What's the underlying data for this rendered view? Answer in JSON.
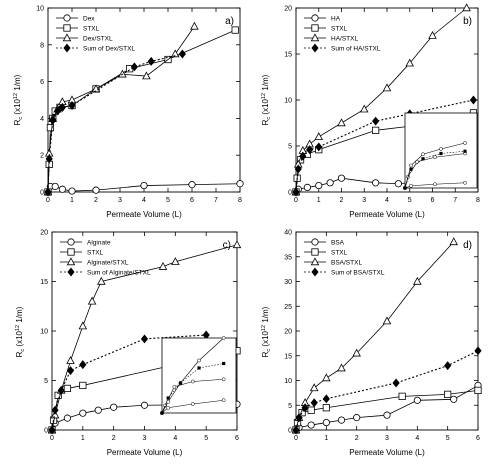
{
  "chart_data": [
    {
      "type": "line",
      "panel_label": "a)",
      "xlabel": "Permeate Volume (L)",
      "ylabel": "R  (x10   1/m)",
      "ylabel_sub": "c",
      "ylabel_exp": "12",
      "xlim": [
        0,
        8
      ],
      "ylim": [
        0,
        10
      ],
      "xticks": [
        0,
        1,
        2,
        3,
        4,
        5,
        6,
        7,
        8
      ],
      "yticks": [
        0,
        2,
        4,
        6,
        8,
        10
      ],
      "legend_position": "top-left",
      "series": [
        {
          "name": "Dex",
          "marker": "circle",
          "line": "solid",
          "x": [
            0,
            0.1,
            0.3,
            0.6,
            1.0,
            2.0,
            4.0,
            6.0,
            8.0
          ],
          "y": [
            0,
            0.3,
            0.3,
            0.15,
            0.05,
            0.1,
            0.35,
            0.4,
            0.45
          ]
        },
        {
          "name": "STXL",
          "marker": "square",
          "line": "solid",
          "x": [
            0,
            0.05,
            0.1,
            0.2,
            0.3,
            0.5,
            1.0,
            2.0,
            3.4,
            5.0,
            7.8
          ],
          "y": [
            0,
            1.5,
            3.5,
            4.0,
            4.4,
            4.6,
            4.7,
            5.6,
            6.7,
            7.2,
            8.8
          ]
        },
        {
          "name": "Dex/STXL",
          "marker": "triangle",
          "line": "solid",
          "x": [
            0,
            0.05,
            0.2,
            0.4,
            0.6,
            1.0,
            2.0,
            3.1,
            4.1,
            5.3,
            6.1
          ],
          "y": [
            0,
            2.1,
            4.0,
            4.5,
            4.9,
            5.0,
            5.6,
            6.4,
            6.3,
            7.5,
            9.0
          ]
        },
        {
          "name": "Sum of Dex/STXL",
          "marker": "diamond",
          "line": "dotted",
          "x": [
            0,
            0.05,
            0.2,
            0.4,
            0.6,
            1.0,
            3.6,
            4.3,
            5.6
          ],
          "y": [
            0,
            1.8,
            3.9,
            4.4,
            4.6,
            4.7,
            6.8,
            7.1,
            7.5
          ]
        }
      ]
    },
    {
      "type": "line",
      "panel_label": "b)",
      "xlabel": "Permeate Volume (L)",
      "ylabel": "R  (x10   1/m)",
      "ylabel_sub": "c",
      "ylabel_exp": "12",
      "xlim": [
        0,
        8
      ],
      "ylim": [
        0,
        20
      ],
      "xticks": [
        0,
        1,
        2,
        3,
        4,
        5,
        6,
        7,
        8
      ],
      "yticks": [
        0,
        5,
        10,
        15,
        20
      ],
      "legend_position": "top-left",
      "has_inset": true,
      "series": [
        {
          "name": "HA",
          "marker": "circle",
          "line": "solid",
          "x": [
            0,
            0.1,
            0.5,
            1.0,
            1.5,
            2.0,
            3.5,
            4.5,
            7.0
          ],
          "y": [
            0,
            0.3,
            0.5,
            0.7,
            1.0,
            1.5,
            1.0,
            0.9,
            1.5
          ]
        },
        {
          "name": "STXL",
          "marker": "square",
          "line": "solid",
          "x": [
            0,
            0.05,
            0.2,
            0.5,
            1.0,
            3.5,
            5.5,
            7.8
          ],
          "y": [
            0,
            1.5,
            3.5,
            4.1,
            4.6,
            6.7,
            7.3,
            8.6
          ]
        },
        {
          "name": "HA/STXL",
          "marker": "triangle",
          "line": "solid",
          "x": [
            0,
            0.1,
            0.3,
            0.6,
            1.0,
            2.0,
            3.0,
            4.0,
            5.0,
            6.0,
            7.5
          ],
          "y": [
            0,
            3.0,
            4.5,
            5.2,
            6.0,
            7.5,
            9.0,
            11.3,
            14.0,
            17.0,
            20.0
          ]
        },
        {
          "name": "Sum of HA/STXL",
          "marker": "diamond",
          "line": "dotted",
          "x": [
            0,
            0.1,
            0.3,
            0.6,
            1.0,
            3.5,
            5.0,
            7.8
          ],
          "y": [
            0,
            2.5,
            3.9,
            4.6,
            4.9,
            7.7,
            8.5,
            10.0
          ]
        }
      ]
    },
    {
      "type": "line",
      "panel_label": "c)",
      "xlabel": "Permeate Volume (L)",
      "ylabel": "R  (x10   1/m)",
      "ylabel_sub": "c",
      "ylabel_exp": "12",
      "xlim": [
        0,
        6
      ],
      "ylim": [
        0,
        20
      ],
      "xticks": [
        0,
        1,
        2,
        3,
        4,
        5,
        6
      ],
      "yticks": [
        0,
        5,
        10,
        15,
        20
      ],
      "legend_position": "top-left",
      "has_inset": true,
      "series": [
        {
          "name": "Alginate",
          "marker": "circle",
          "line": "solid",
          "x": [
            0,
            0.1,
            0.5,
            1.0,
            1.5,
            2.0,
            3.0,
            6.0
          ],
          "y": [
            0,
            0.7,
            1.2,
            1.7,
            2.0,
            2.3,
            2.5,
            2.6
          ]
        },
        {
          "name": "STXL",
          "marker": "square",
          "line": "solid",
          "x": [
            0,
            0.05,
            0.2,
            0.5,
            1.0,
            6.0
          ],
          "y": [
            0,
            1.0,
            3.5,
            4.2,
            4.5,
            8.0
          ]
        },
        {
          "name": "Alginate/STXL",
          "marker": "triangle",
          "line": "solid",
          "x": [
            0,
            0.1,
            0.3,
            0.6,
            1.0,
            1.3,
            1.6,
            3.6,
            4.0,
            6.0
          ],
          "y": [
            0,
            1.5,
            4.0,
            7.0,
            10.5,
            13.0,
            15.0,
            16.5,
            17.0,
            18.7
          ]
        },
        {
          "name": "Sum of Alginate/STXL",
          "marker": "diamond",
          "line": "dotted",
          "x": [
            0,
            0.1,
            0.3,
            0.6,
            1.0,
            3.0,
            5.0
          ],
          "y": [
            0,
            2.0,
            4.0,
            6.0,
            6.6,
            9.2,
            9.6
          ]
        }
      ]
    },
    {
      "type": "line",
      "panel_label": "d)",
      "xlabel": "Permeate Volume (L)",
      "ylabel": "R  (x10   1/m)",
      "ylabel_sub": "c",
      "ylabel_exp": "12",
      "xlim": [
        0,
        6
      ],
      "ylim": [
        0,
        40
      ],
      "xticks": [
        0,
        1,
        2,
        3,
        4,
        5,
        6
      ],
      "yticks": [
        0,
        5,
        10,
        15,
        20,
        25,
        30,
        35,
        40
      ],
      "legend_position": "top-left",
      "series": [
        {
          "name": "BSA",
          "marker": "circle",
          "line": "solid",
          "x": [
            0,
            0.1,
            0.5,
            1.0,
            1.5,
            2.0,
            3.0,
            4.0,
            5.2,
            6.0
          ],
          "y": [
            0,
            0.5,
            1.0,
            1.5,
            2.0,
            2.5,
            3.0,
            6.0,
            6.2,
            9.0
          ]
        },
        {
          "name": "STXL",
          "marker": "square",
          "line": "solid",
          "x": [
            0,
            0.05,
            0.2,
            0.5,
            1.0,
            3.5,
            5.0,
            6.0
          ],
          "y": [
            0,
            1.5,
            3.5,
            4.0,
            4.5,
            6.8,
            7.2,
            8.0
          ]
        },
        {
          "name": "BSA/STXL",
          "marker": "triangle",
          "line": "solid",
          "x": [
            0,
            0.1,
            0.3,
            0.6,
            1.0,
            1.5,
            2.0,
            3.0,
            4.0,
            5.2
          ],
          "y": [
            0,
            2.5,
            5.5,
            8.5,
            10.5,
            12.5,
            15.5,
            22.0,
            30.0,
            38.0
          ]
        },
        {
          "name": "Sum of BSA/STXL",
          "marker": "diamond",
          "line": "dotted",
          "x": [
            0,
            0.1,
            0.3,
            0.6,
            1.0,
            3.3,
            5.0,
            6.0
          ],
          "y": [
            0,
            2.5,
            4.5,
            5.5,
            6.3,
            9.5,
            13.0,
            16.0
          ]
        }
      ]
    }
  ]
}
